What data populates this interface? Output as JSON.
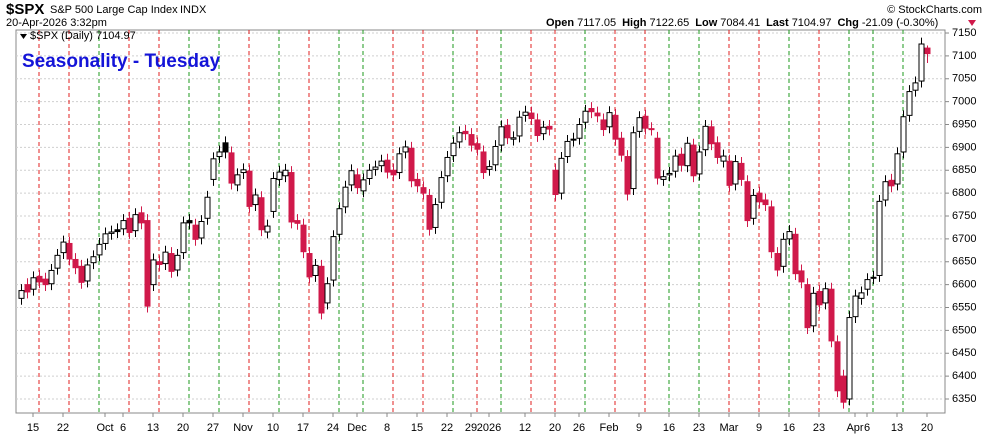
{
  "header": {
    "symbol": "$SPX",
    "name": "S&P 500 Large Cap Index",
    "exchange": "INDX",
    "date": "20-Apr-2026 3:32pm",
    "source": "© StockCharts.com",
    "quote_labels": [
      "Open",
      "High",
      "Low",
      "Last",
      "Chg"
    ],
    "chg": "-21.09 (-0.30%)",
    "legend": "$SPX (Daily)"
  },
  "chart_data": {
    "type": "candlestick",
    "title": "Seasonality - Tuesday",
    "categories": [
      null,
      null,
      "15",
      null,
      null,
      null,
      null,
      "22",
      null,
      null,
      null,
      null,
      null,
      null,
      "Oct",
      null,
      null,
      "6",
      null,
      null,
      null,
      null,
      "13",
      null,
      null,
      null,
      null,
      "20",
      null,
      null,
      null,
      null,
      "27",
      null,
      null,
      null,
      null,
      "Nov",
      null,
      null,
      null,
      null,
      "10",
      null,
      null,
      null,
      null,
      "17",
      null,
      null,
      null,
      null,
      "24",
      null,
      null,
      null,
      "Dec",
      null,
      null,
      null,
      null,
      "8",
      null,
      null,
      null,
      null,
      "15",
      null,
      null,
      null,
      null,
      "22",
      null,
      null,
      null,
      "29",
      null,
      null,
      "2026",
      null,
      null,
      null,
      null,
      null,
      "12",
      null,
      null,
      null,
      null,
      "20",
      null,
      null,
      null,
      "26",
      null,
      null,
      null,
      null,
      "Feb",
      null,
      null,
      null,
      null,
      "9",
      null,
      null,
      null,
      null,
      "16",
      null,
      null,
      null,
      null,
      "23",
      null,
      null,
      null,
      null,
      "Mar",
      null,
      null,
      null,
      null,
      "9",
      null,
      null,
      null,
      null,
      "16",
      null,
      null,
      null,
      null,
      "23",
      null,
      null,
      null,
      null,
      null,
      "Apr",
      null,
      "6",
      null,
      null,
      null,
      null,
      "13",
      null,
      null,
      null,
      null,
      "20"
    ],
    "open": [
      6570,
      6600,
      6590,
      6618,
      6612,
      6602,
      6636,
      6670,
      6690,
      6655,
      6640,
      6608,
      6648,
      6665,
      6690,
      6712,
      6720,
      6722,
      6745,
      6718,
      6757,
      6740,
      6600,
      6650,
      6646,
      6668,
      6632,
      6670,
      6740,
      6730,
      6702,
      6745,
      6830,
      6880,
      6910,
      6888,
      6818,
      6845,
      6848,
      6775,
      6790,
      6715,
      6760,
      6830,
      6838,
      6845,
      6740,
      6730,
      6668,
      6620,
      6640,
      6560,
      6610,
      6710,
      6770,
      6818,
      6840,
      6805,
      6832,
      6852,
      6860,
      6872,
      6850,
      6845,
      6890,
      6898,
      6830,
      6812,
      6795,
      6725,
      6780,
      6838,
      6882,
      6912,
      6935,
      6928,
      6908,
      6890,
      6852,
      6862,
      6905,
      6948,
      6918,
      6925,
      6970,
      6975,
      6960,
      6930,
      6946,
      6850,
      6800,
      6880,
      6918,
      6920,
      6955,
      6985,
      6975,
      6960,
      6945,
      6970,
      6920,
      6880,
      6810,
      6935,
      6968,
      6940,
      6920,
      6830,
      6840,
      6848,
      6885,
      6860,
      6905,
      6842,
      6895,
      6945,
      6910,
      6870,
      6870,
      6820,
      6865,
      6825,
      6745,
      6800,
      6785,
      6770,
      6668,
      6640,
      6700,
      6710,
      6630,
      6600,
      6510,
      6585,
      6560,
      6590,
      6475,
      6400,
      6350,
      6530,
      6570,
      6590,
      6615,
      6620,
      6785,
      6828,
      6820,
      6890,
      6970,
      7025,
      7045,
      7117.05
    ],
    "high": [
      6601,
      6614,
      6629,
      6632,
      6626,
      6645,
      6678,
      6707,
      6704,
      6669,
      6654,
      6657,
      6675,
      6702,
      6725,
      6729,
      6734,
      6754,
      6759,
      6767,
      6771,
      6754,
      6668,
      6664,
      6685,
      6682,
      6678,
      6749,
      6754,
      6744,
      6752,
      6805,
      6889,
      6904,
      6924,
      6902,
      6854,
      6865,
      6862,
      6810,
      6804,
      6742,
      6846,
      6860,
      6864,
      6859,
      6754,
      6744,
      6682,
      6656,
      6654,
      6616,
      6719,
      6780,
      6827,
      6863,
      6854,
      6843,
      6864,
      6871,
      6884,
      6886,
      6864,
      6900,
      6915,
      6912,
      6844,
      6826,
      6809,
      6789,
      6848,
      6892,
      6923,
      6946,
      6949,
      6942,
      6922,
      6904,
      6872,
      6916,
      6959,
      6962,
      6935,
      6980,
      6991,
      6989,
      6974,
      6958,
      6960,
      6864,
      6890,
      6927,
      6932,
      6964,
      6993,
      6999,
      6989,
      6974,
      6990,
      6984,
      6934,
      6894,
      6946,
      6979,
      6982,
      6955,
      6934,
      6850,
      6857,
      6895,
      6899,
      6923,
      6919,
      6904,
      6960,
      6959,
      6924,
      6895,
      6884,
      6883,
      6879,
      6839,
      6809,
      6814,
      6799,
      6784,
      6682,
      6713,
      6730,
      6724,
      6644,
      6614,
      6595,
      6599,
      6605,
      6604,
      6489,
      6414,
      6542,
      6589,
      6596,
      6625,
      6630,
      6796,
      6839,
      6842,
      6900,
      6981,
      7036,
      7055,
      7140,
      7122.65
    ],
    "low": [
      6556,
      6570,
      6576,
      6592,
      6586,
      6588,
      6622,
      6656,
      6642,
      6623,
      6591,
      6594,
      6634,
      6651,
      6676,
      6698,
      6702,
      6708,
      6700,
      6704,
      6721,
      6539,
      6586,
      6630,
      6632,
      6615,
      6618,
      6656,
      6721,
      6685,
      6688,
      6731,
      6816,
      6866,
      6876,
      6808,
      6804,
      6831,
      6757,
      6761,
      6706,
      6701,
      6746,
      6816,
      6824,
      6723,
      6720,
      6658,
      6603,
      6606,
      6524,
      6546,
      6596,
      6696,
      6756,
      6804,
      6798,
      6791,
      6818,
      6838,
      6846,
      6832,
      6826,
      6831,
      6876,
      6813,
      6802,
      6786,
      6707,
      6711,
      6766,
      6824,
      6868,
      6898,
      6916,
      6891,
      6882,
      6831,
      6838,
      6848,
      6891,
      6907,
      6904,
      6911,
      6956,
      6949,
      6912,
      6916,
      6926,
      6783,
      6786,
      6866,
      6902,
      6906,
      6941,
      6964,
      6955,
      6925,
      6931,
      6904,
      6869,
      6784,
      6796,
      6921,
      6928,
      6926,
      6819,
      6816,
      6826,
      6834,
      6847,
      6846,
      6824,
      6828,
      6881,
      6894,
      6864,
      6856,
      6803,
      6806,
      6816,
      6726,
      6731,
      6767,
      6761,
      6658,
      6618,
      6626,
      6686,
      6610,
      6592,
      6492,
      6496,
      6542,
      6546,
      6463,
      6354,
      6329,
      6336,
      6516,
      6556,
      6576,
      6601,
      6606,
      6771,
      6802,
      6806,
      6876,
      6956,
      7011,
      7031,
      7084.41
    ],
    "close": [
      6587,
      6584,
      6615,
      6606,
      6600,
      6631,
      6664,
      6693,
      6656,
      6637,
      6605,
      6643,
      6661,
      6688,
      6711,
      6715,
      6716,
      6740,
      6714,
      6753,
      6735,
      6553,
      6654,
      6644,
      6671,
      6629,
      6664,
      6735,
      6735,
      6699,
      6738,
      6791,
      6875,
      6890,
      6890,
      6822,
      6840,
      6851,
      6771,
      6796,
      6720,
      6728,
      6832,
      6846,
      6850,
      6737,
      6734,
      6672,
      6617,
      6642,
      6538,
      6602,
      6705,
      6766,
      6813,
      6849,
      6812,
      6829,
      6850,
      6857,
      6870,
      6846,
      6840,
      6886,
      6901,
      6827,
      6816,
      6800,
      6721,
      6775,
      6834,
      6878,
      6909,
      6932,
      6930,
      6905,
      6896,
      6845,
      6858,
      6902,
      6945,
      6921,
      6921,
      6966,
      6977,
      6963,
      6926,
      6944,
      6940,
      6797,
      6876,
      6913,
      6916,
      6950,
      6979,
      6978,
      6969,
      6939,
      6976,
      6918,
      6883,
      6798,
      6932,
      6965,
      6942,
      6941,
      6833,
      6836,
      6843,
      6881,
      6861,
      6909,
      6838,
      6890,
      6946,
      6908,
      6878,
      6881,
      6817,
      6869,
      6830,
      6740,
      6795,
      6781,
      6775,
      6672,
      6632,
      6699,
      6716,
      6624,
      6606,
      6506,
      6581,
      6556,
      6591,
      6477,
      6368,
      6343,
      6528,
      6575,
      6582,
      6611,
      6616,
      6782,
      6825,
      6816,
      6886,
      6967,
      7022,
      7041,
      7126,
      7104.97
    ],
    "up_color": "#000000",
    "down_color": "#d0194a",
    "tuesday_lines": [
      {
        "index": 3,
        "color": "#e02020"
      },
      {
        "index": 8,
        "color": "#e02020"
      },
      {
        "index": 13,
        "color": "#1e9a1e"
      },
      {
        "index": 18,
        "color": "#e02020"
      },
      {
        "index": 23,
        "color": "#e02020"
      },
      {
        "index": 28,
        "color": "#1e9a1e"
      },
      {
        "index": 33,
        "color": "#1e9a1e"
      },
      {
        "index": 38,
        "color": "#e02020"
      },
      {
        "index": 43,
        "color": "#1e9a1e"
      },
      {
        "index": 48,
        "color": "#e02020"
      },
      {
        "index": 53,
        "color": "#1e9a1e"
      },
      {
        "index": 57,
        "color": "#1e9a1e"
      },
      {
        "index": 62,
        "color": "#e02020"
      },
      {
        "index": 67,
        "color": "#e02020"
      },
      {
        "index": 72,
        "color": "#1e9a1e"
      },
      {
        "index": 76,
        "color": "#e02020"
      },
      {
        "index": 80,
        "color": "#1e9a1e"
      },
      {
        "index": 85,
        "color": "#e02020"
      },
      {
        "index": 89,
        "color": "#e02020"
      },
      {
        "index": 94,
        "color": "#1e9a1e"
      },
      {
        "index": 99,
        "color": "#e02020"
      },
      {
        "index": 104,
        "color": "#e02020"
      },
      {
        "index": 108,
        "color": "#1e9a1e"
      },
      {
        "index": 113,
        "color": "#1e9a1e"
      },
      {
        "index": 118,
        "color": "#e02020"
      },
      {
        "index": 123,
        "color": "#e02020"
      },
      {
        "index": 128,
        "color": "#1e9a1e"
      },
      {
        "index": 133,
        "color": "#e02020"
      },
      {
        "index": 138,
        "color": "#1e9a1e"
      },
      {
        "index": 142,
        "color": "#1e9a1e"
      },
      {
        "index": 147,
        "color": "#1e9a1e"
      }
    ],
    "ylim": [
      6319.4,
      7156.6
    ],
    "yticks": [
      6350,
      6400,
      6450,
      6500,
      6550,
      6600,
      6650,
      6700,
      6750,
      6800,
      6850,
      6900,
      6950,
      7000,
      7050,
      7100,
      7150
    ],
    "grid": true
  }
}
